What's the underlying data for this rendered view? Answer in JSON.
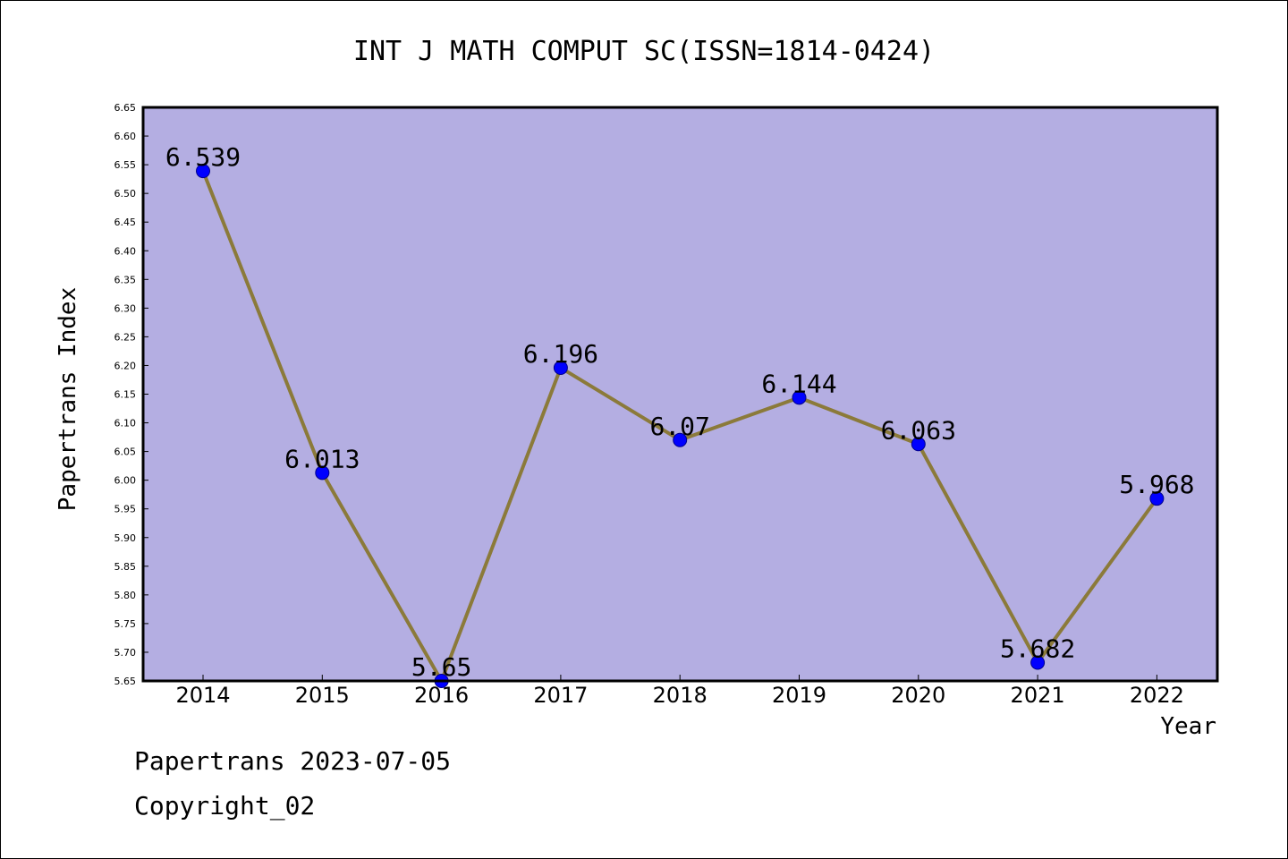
{
  "chart_data": {
    "type": "line",
    "title": "INT J MATH COMPUT SC(ISSN=1814-0424)",
    "xlabel": "Year",
    "ylabel": "Papertrans Index",
    "categories": [
      "2014",
      "2015",
      "2016",
      "2017",
      "2018",
      "2019",
      "2020",
      "2021",
      "2022"
    ],
    "series": [
      {
        "values": [
          6.539,
          6.013,
          5.65,
          6.196,
          6.07,
          6.144,
          6.063,
          5.682,
          5.968
        ]
      }
    ],
    "data_labels": [
      "6.539",
      "6.013",
      "5.65",
      "6.196",
      "6.07",
      "6.144",
      "6.063",
      "5.682",
      "5.968"
    ],
    "ylim": [
      5.65,
      6.65
    ],
    "yticks": [
      "5.65",
      "5.70",
      "5.75",
      "5.80",
      "5.85",
      "5.90",
      "5.95",
      "6.00",
      "6.05",
      "6.10",
      "6.15",
      "6.20",
      "6.25",
      "6.30",
      "6.35",
      "6.40",
      "6.45",
      "6.50",
      "6.55",
      "6.60",
      "6.65"
    ],
    "grid": false,
    "legend": "none",
    "colors": {
      "plot_background": "#b4aee2",
      "line": "#8b7a3a",
      "marker": "#0000ff"
    }
  },
  "footer": {
    "date_line": "Papertrans 2023-07-05",
    "copyright": "Copyright_02"
  }
}
